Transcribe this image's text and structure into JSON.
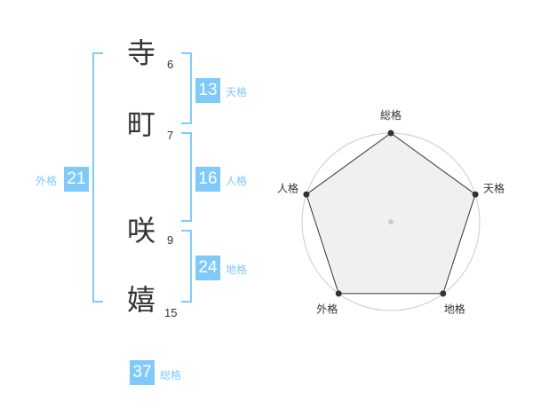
{
  "name": [
    {
      "char": "寺",
      "strokes": "6"
    },
    {
      "char": "町",
      "strokes": "7"
    },
    {
      "char": "咲",
      "strokes": "9"
    },
    {
      "char": "嬉",
      "strokes": "15"
    }
  ],
  "kaku": {
    "tenkaku": {
      "label": "天格",
      "value": "13"
    },
    "jinkaku": {
      "label": "人格",
      "value": "16"
    },
    "chikaku": {
      "label": "地格",
      "value": "24"
    },
    "gaikaku": {
      "label": "外格",
      "value": "21"
    },
    "soukaku": {
      "label": "総格",
      "value": "37"
    }
  },
  "colors": {
    "accent": "#80cafa",
    "text": "#333333"
  },
  "chart_data": {
    "type": "radar",
    "axes": [
      "総格",
      "天格",
      "地格",
      "外格",
      "人格"
    ],
    "values": [
      5,
      5,
      5,
      5,
      5
    ],
    "range": [
      0,
      5
    ],
    "rings": 5
  }
}
